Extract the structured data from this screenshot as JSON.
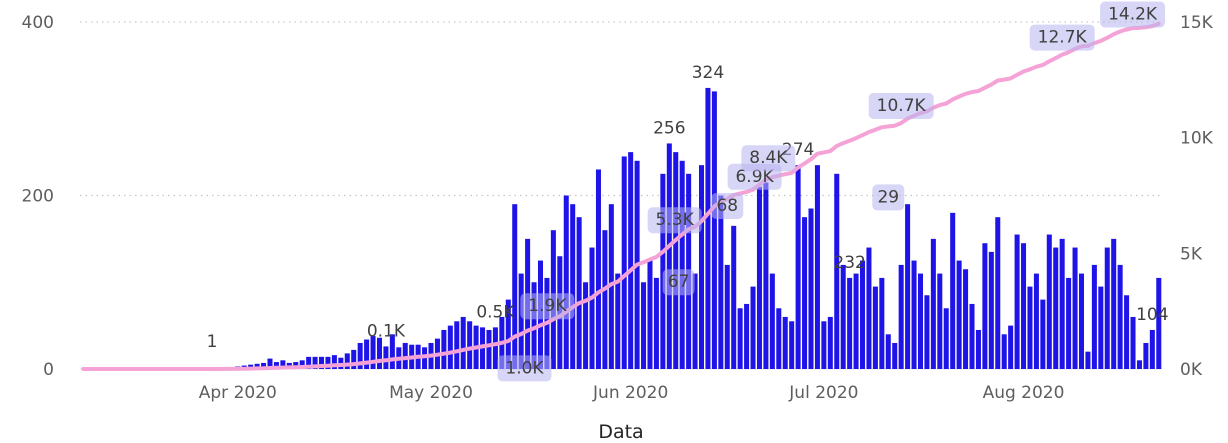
{
  "chart_data": {
    "type": "bar",
    "xlabel": "Data",
    "x_ticks": [
      "Apr 2020",
      "May 2020",
      "Jun 2020",
      "Jul 2020",
      "Aug 2020"
    ],
    "y_left": {
      "lim": [
        0,
        400
      ],
      "ticks": [
        "0",
        "200",
        "400"
      ]
    },
    "y_right": {
      "lim": [
        0,
        15000
      ],
      "ticks": [
        "0K",
        "5K",
        "10K",
        "15K"
      ]
    },
    "colors": {
      "bars": "#1f14e8",
      "line": "#f5a3d6",
      "label_bg": "#b8b4f0",
      "grid": "#c8c6c4"
    },
    "grid": true,
    "series": [
      {
        "chart": "bar",
        "axis": "left",
        "x_start": "2020-03-08",
        "values": [
          0,
          0,
          0,
          0,
          0,
          0,
          0,
          0,
          0,
          0,
          0,
          0,
          0,
          0,
          0,
          0,
          0,
          0,
          0,
          0,
          1,
          1,
          2,
          2,
          3,
          4,
          5,
          6,
          7,
          12,
          8,
          10,
          7,
          8,
          10,
          14,
          14,
          14,
          14,
          16,
          13,
          18,
          22,
          30,
          34,
          38,
          36,
          26,
          40,
          25,
          30,
          28,
          28,
          25,
          30,
          35,
          45,
          50,
          55,
          60,
          55,
          50,
          48,
          45,
          48,
          60,
          80,
          190,
          110,
          150,
          100,
          125,
          105,
          160,
          130,
          200,
          190,
          175,
          100,
          140,
          230,
          160,
          190,
          110,
          245,
          250,
          240,
          100,
          125,
          105,
          225,
          260,
          250,
          240,
          225,
          110,
          235,
          324,
          320,
          200,
          120,
          165,
          70,
          75,
          95,
          210,
          215,
          110,
          70,
          60,
          55,
          235,
          175,
          185,
          235,
          55,
          60,
          225,
          120,
          105,
          110,
          125,
          140,
          95,
          105,
          40,
          30,
          120,
          190,
          125,
          110,
          85,
          150,
          110,
          70,
          180,
          125,
          115,
          75,
          45,
          145,
          135,
          175,
          40,
          50,
          155,
          145,
          95,
          110,
          80,
          155,
          140,
          150,
          105,
          140,
          110,
          20,
          120,
          95,
          140,
          150,
          120,
          85,
          60,
          10,
          30,
          45,
          105
        ]
      },
      {
        "chart": "line",
        "axis": "right",
        "x_start": "2020-03-08",
        "values": [
          0,
          0,
          0,
          0,
          0,
          0,
          0,
          0,
          0,
          0,
          0,
          0,
          0,
          0,
          0,
          0,
          0,
          0,
          0,
          0,
          1,
          2,
          4,
          6,
          9,
          13,
          18,
          24,
          31,
          43,
          51,
          61,
          68,
          76,
          86,
          100,
          114,
          128,
          142,
          158,
          171,
          189,
          211,
          241,
          275,
          313,
          349,
          375,
          415,
          440,
          470,
          498,
          526,
          551,
          581,
          616,
          661,
          711,
          766,
          826,
          881,
          931,
          979,
          1024,
          1072,
          1132,
          1212,
          1402,
          1512,
          1662,
          1762,
          1887,
          1992,
          2152,
          2282,
          2482,
          2672,
          2847,
          2947,
          3087,
          3317,
          3477,
          3667,
          3777,
          4022,
          4272,
          4512,
          4612,
          4737,
          4842,
          5067,
          5327,
          5577,
          5817,
          6042,
          6152,
          6387,
          6711,
          7031,
          7231,
          7351,
          7516,
          7586,
          7661,
          7756,
          7966,
          8181,
          8291,
          8361,
          8421,
          8476,
          8711,
          8886,
          9071,
          9306,
          9361,
          9421,
          9646,
          9766,
          9871,
          9981,
          10106,
          10246,
          10341,
          10446,
          10486,
          10516,
          10636,
          10826,
          10951,
          11061,
          11146,
          11296,
          11406,
          11476,
          11656,
          11781,
          11896,
          11971,
          12016,
          12161,
          12296,
          12471,
          12511,
          12561,
          12716,
          12861,
          12956,
          13066,
          13146,
          13301,
          13441,
          13591,
          13696,
          13836,
          13946,
          13966,
          14086,
          14181,
          14321,
          14471,
          14591,
          14676,
          14736,
          14746,
          14776,
          14821,
          14926
        ]
      }
    ],
    "labels": {
      "bars": [
        {
          "day": 20,
          "text": "1"
        },
        {
          "day": 47,
          "text": "0.1K"
        },
        {
          "day": 64,
          "text": "0.5K"
        },
        {
          "day": 91,
          "text": "256"
        },
        {
          "day": 97,
          "text": "324"
        },
        {
          "day": 111,
          "text": "274"
        },
        {
          "day": 119,
          "text": "232"
        },
        {
          "day": 166,
          "text": "104"
        }
      ],
      "line": [
        {
          "day": 73,
          "text": "1.9K"
        },
        {
          "day": 71,
          "text": "1.0K"
        },
        {
          "day": 94,
          "text": "5.3K"
        },
        {
          "day": 94,
          "text": "67"
        },
        {
          "day": 100,
          "text": "68"
        },
        {
          "day": 103,
          "text": "6.9K"
        },
        {
          "day": 107,
          "text": "8.4K"
        },
        {
          "day": 127,
          "text": "10.7K"
        },
        {
          "day": 125,
          "text": "29"
        },
        {
          "day": 152,
          "text": "12.7K"
        },
        {
          "day": 162,
          "text": "14.2K"
        }
      ]
    }
  }
}
